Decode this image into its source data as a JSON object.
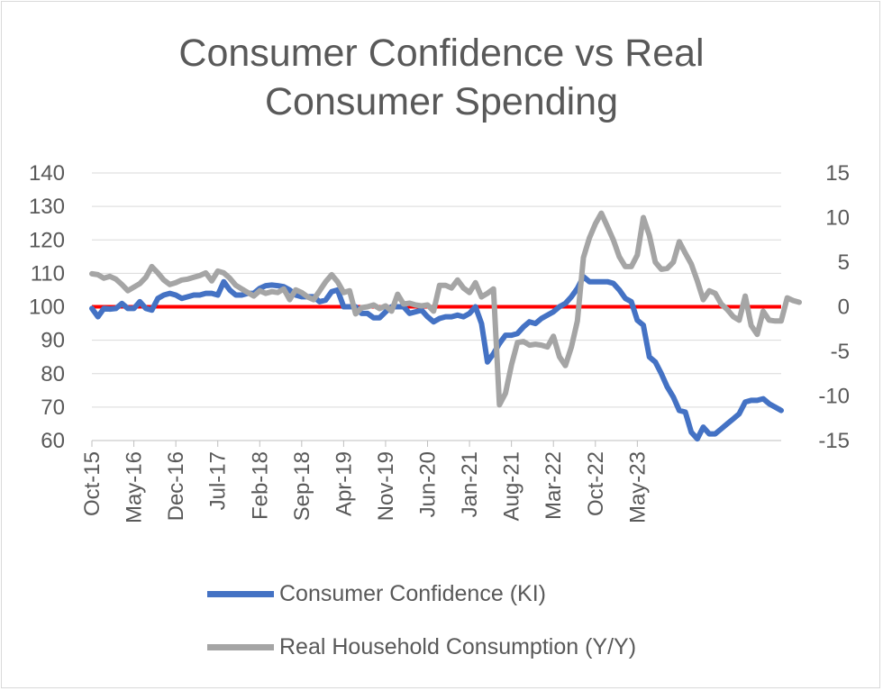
{
  "chart_data": {
    "type": "line",
    "title": "Consumer Confidence vs Real Consumer Spending",
    "title_lines": [
      "Consumer Confidence vs Real",
      "Consumer Spending"
    ],
    "x_tick_labels": [
      "Oct-15",
      "May-16",
      "Dec-16",
      "Jul-17",
      "Feb-18",
      "Sep-18",
      "Apr-19",
      "Nov-19",
      "Jun-20",
      "Jan-21",
      "Aug-21",
      "Mar-22",
      "Oct-22",
      "May-23"
    ],
    "y_left": {
      "min": 60,
      "max": 140,
      "step": 10,
      "ticks": [
        "60",
        "70",
        "80",
        "90",
        "100",
        "110",
        "120",
        "130",
        "140"
      ]
    },
    "y_right": {
      "min": -15,
      "max": 15,
      "step": 5,
      "ticks": [
        "-15",
        "-10",
        "-5",
        "0",
        "5",
        "10",
        "15"
      ]
    },
    "reference_line": {
      "axis": "left",
      "value": 100,
      "color": "#ff0000"
    },
    "grid": true,
    "legend_position": "bottom",
    "series": [
      {
        "name": "Consumer Confidence (KI)",
        "axis": "left",
        "color": "#4472c4",
        "values": [
          99.5,
          97,
          99.5,
          99.3,
          99.5,
          101,
          99.5,
          99.5,
          101.5,
          99.5,
          99,
          102.5,
          103.5,
          104,
          103.5,
          102.5,
          103,
          103.5,
          103.5,
          104,
          104,
          103.5,
          107.5,
          105,
          103.5,
          103.5,
          104,
          104,
          105.5,
          106.3,
          106.5,
          106.3,
          106,
          105,
          103.5,
          103,
          103,
          103,
          101.5,
          102,
          104.5,
          105,
          100,
          100,
          100,
          98,
          98,
          96.7,
          96.7,
          98.5,
          100,
          100,
          100,
          98,
          98.5,
          99,
          97,
          95.5,
          96.5,
          97,
          97,
          97.5,
          97,
          98,
          100,
          95,
          83.5,
          86,
          89,
          91.5,
          91.5,
          92,
          94,
          95.5,
          95,
          96.5,
          97.5,
          98.5,
          100,
          101,
          103,
          105.5,
          109,
          107.5,
          107.5,
          107.5,
          107.5,
          107,
          105,
          102.5,
          101.5,
          96,
          94.5,
          85,
          83.5,
          80,
          76,
          73,
          69,
          68.5,
          62.5,
          60.5,
          64,
          62,
          62,
          63.5,
          65,
          66.5,
          68,
          71.5,
          72,
          72,
          72.5,
          71,
          70,
          69
        ]
      },
      {
        "name": "Real Household Consumption (Y/Y)",
        "axis": "right",
        "color": "#a5a5a5",
        "values": [
          3.7,
          3.6,
          3.2,
          3.4,
          3.1,
          2.5,
          1.8,
          2.2,
          2.6,
          3.3,
          4.5,
          3.8,
          3,
          2.5,
          2.7,
          3,
          3.1,
          3.3,
          3.5,
          3.8,
          2.9,
          4,
          3.8,
          3.2,
          2.4,
          2,
          1.6,
          1.2,
          1.8,
          1.5,
          1.7,
          1.6,
          2,
          0.8,
          1.9,
          1.6,
          1.1,
          0.8,
          1.8,
          2.8,
          3.6,
          2.8,
          1.6,
          1.8,
          -0.8,
          -0.1,
          0,
          0.2,
          -0.2,
          0.1,
          -0.5,
          1.4,
          0.3,
          0.4,
          0.2,
          0.1,
          0.2,
          -0.5,
          2.4,
          2.4,
          2.1,
          3,
          2.1,
          1.6,
          2.7,
          1.1,
          1.5,
          2,
          -11,
          -9.7,
          -6.5,
          -4,
          -3.9,
          -4.3,
          -4.2,
          -4.3,
          -4.5,
          -3.3,
          -5.6,
          -6.6,
          -4.5,
          -1.6,
          5.5,
          7.7,
          9.3,
          10.5,
          9,
          7.5,
          5.6,
          4.5,
          4.5,
          5.8,
          10,
          8,
          5,
          4.2,
          4.3,
          5,
          7.3,
          6,
          4.8,
          2.9,
          0.8,
          1.8,
          1.5,
          0.3,
          -0.3,
          -1.1,
          -1.5,
          1.2,
          -2.1,
          -3.1,
          -0.5,
          -1.5,
          -1.6,
          -1.6,
          1,
          0.7,
          0.5
        ]
      }
    ]
  }
}
